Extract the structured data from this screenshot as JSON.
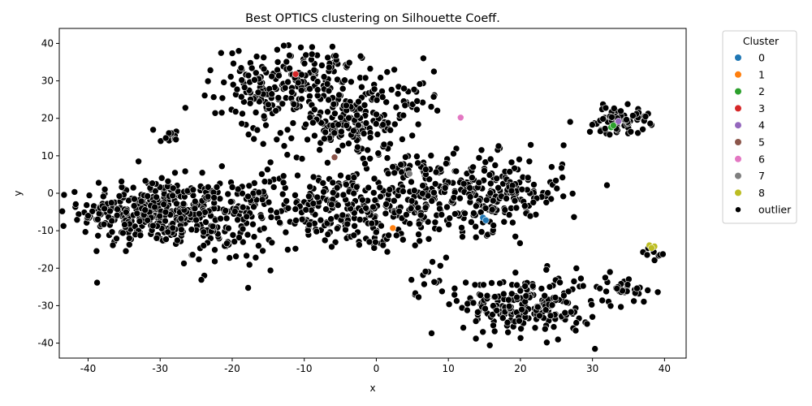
{
  "chart_data": {
    "type": "scatter",
    "title": "Best OPTICS clustering on Silhouette Coeff.",
    "xlabel": "x",
    "ylabel": "y",
    "xlim": [
      -44,
      43
    ],
    "ylim": [
      -44,
      44
    ],
    "xticks": [
      -40,
      -30,
      -20,
      -10,
      0,
      10,
      20,
      30,
      40
    ],
    "yticks": [
      -40,
      -30,
      -20,
      -10,
      0,
      10,
      20,
      30,
      40
    ],
    "grid": false,
    "legend": {
      "title": "Cluster",
      "placement": "outside-right",
      "entries": [
        {
          "label": "0",
          "color": "#1f77b4"
        },
        {
          "label": "1",
          "color": "#ff7f0e"
        },
        {
          "label": "2",
          "color": "#2ca02c"
        },
        {
          "label": "3",
          "color": "#d62728"
        },
        {
          "label": "4",
          "color": "#9467bd"
        },
        {
          "label": "5",
          "color": "#8c564b"
        },
        {
          "label": "6",
          "color": "#e377c2"
        },
        {
          "label": "7",
          "color": "#7f7f7f"
        },
        {
          "label": "8",
          "color": "#bcbd22"
        },
        {
          "label": "outlier",
          "color": "#000000"
        }
      ]
    },
    "clusters": [
      {
        "name": "0",
        "color": "#1f77b4",
        "x": [
          14.8,
          15.2
        ],
        "y": [
          -6.5,
          -7.2
        ]
      },
      {
        "name": "1",
        "color": "#ff7f0e",
        "x": [
          2.3
        ],
        "y": [
          -9.3
        ]
      },
      {
        "name": "2",
        "color": "#2ca02c",
        "x": [
          32.6,
          32.9
        ],
        "y": [
          17.6,
          18.1
        ]
      },
      {
        "name": "3",
        "color": "#d62728",
        "x": [
          -11.2
        ],
        "y": [
          31.8
        ]
      },
      {
        "name": "4",
        "color": "#9467bd",
        "x": [
          33.6
        ],
        "y": [
          19.2
        ]
      },
      {
        "name": "5",
        "color": "#8c564b",
        "x": [
          -5.8
        ],
        "y": [
          9.6
        ]
      },
      {
        "name": "6",
        "color": "#e377c2",
        "x": [
          11.7
        ],
        "y": [
          20.2
        ]
      },
      {
        "name": "7",
        "color": "#7f7f7f",
        "x": [
          4.6
        ],
        "y": [
          5.2
        ]
      },
      {
        "name": "8",
        "color": "#bcbd22",
        "x": [
          37.9,
          38.6,
          38.2
        ],
        "y": [
          -13.9,
          -14.2,
          -14.6
        ]
      }
    ],
    "outlier_regions": [
      {
        "cx": -31,
        "cy": -5,
        "sx": 5,
        "sy": 4.5,
        "n": 340
      },
      {
        "cx": -21,
        "cy": -8,
        "sx": 3.5,
        "sy": 6,
        "n": 120
      },
      {
        "cx": -10,
        "cy": 30,
        "sx": 5.5,
        "sy": 4.5,
        "n": 190
      },
      {
        "cx": -4,
        "cy": 18,
        "sx": 4,
        "sy": 4,
        "n": 150
      },
      {
        "cx": -17,
        "cy": 24,
        "sx": 2.5,
        "sy": 6,
        "n": 50
      },
      {
        "cx": -8,
        "cy": -4,
        "sx": 6,
        "sy": 5,
        "n": 190
      },
      {
        "cx": 4,
        "cy": 0,
        "sx": 5,
        "sy": 6,
        "n": 170
      },
      {
        "cx": 16,
        "cy": 0,
        "sx": 5,
        "sy": 5,
        "n": 220
      },
      {
        "cx": 21,
        "cy": -30,
        "sx": 4.5,
        "sy": 4,
        "n": 220
      },
      {
        "cx": 33.5,
        "cy": 19.5,
        "sx": 2.2,
        "sy": 1.8,
        "n": 70
      },
      {
        "cx": 34.5,
        "cy": -25,
        "sx": 1.8,
        "sy": 1.6,
        "n": 30
      },
      {
        "cx": 5,
        "cy": 25,
        "sx": 2,
        "sy": 2,
        "n": 20
      },
      {
        "cx": -29.5,
        "cy": 15.5,
        "sx": 1.2,
        "sy": 1,
        "n": 12
      },
      {
        "cx": 0.5,
        "cy": -13,
        "sx": 2,
        "sy": 1.5,
        "n": 14
      },
      {
        "cx": 8,
        "cy": -22,
        "sx": 2,
        "sy": 3,
        "n": 18
      },
      {
        "cx": 38.5,
        "cy": -16,
        "sx": 0.8,
        "sy": 0.8,
        "n": 8
      }
    ],
    "outlier_singles": [
      [
        26,
        12.8
      ],
      [
        -26.5,
        22.8
      ],
      [
        -33,
        8.5
      ],
      [
        30,
        -33
      ],
      [
        -40,
        -6
      ],
      [
        8,
        32.5
      ],
      [
        2.5,
        33
      ],
      [
        -1.5,
        30.8
      ]
    ]
  }
}
